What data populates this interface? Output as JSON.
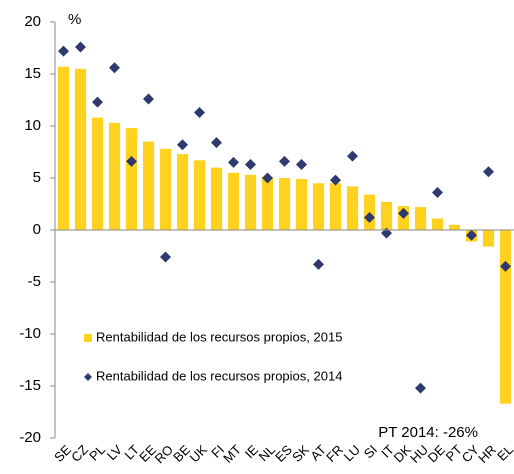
{
  "chart_data": {
    "type": "bar",
    "y_unit_label": "%",
    "annotation": "PT 2014: -26%",
    "categories": [
      "SE",
      "CZ",
      "PL",
      "LV",
      "LT",
      "EE",
      "RO",
      "BE",
      "UK",
      "FI",
      "MT",
      "IE",
      "NL",
      "ES",
      "SK",
      "AT",
      "FR",
      "LU",
      "SI",
      "IT",
      "DK",
      "HU",
      "DE",
      "PT",
      "CY",
      "HR",
      "EL"
    ],
    "series": [
      {
        "name": "Rentabilidad de los recursos propios, 2015",
        "type": "bar",
        "color": "#ffd21f",
        "values": [
          15.7,
          15.5,
          10.8,
          10.3,
          9.8,
          8.5,
          7.8,
          7.3,
          6.7,
          6.0,
          5.5,
          5.3,
          5.1,
          5.0,
          4.9,
          4.5,
          4.5,
          4.2,
          3.4,
          2.7,
          2.3,
          2.2,
          1.1,
          0.5,
          -1.1,
          -1.6,
          -16.7
        ]
      },
      {
        "name": "Rentabilidad de los recursos propios, 2014",
        "type": "scatter",
        "color": "#2e3a6e",
        "values": [
          17.2,
          17.6,
          12.3,
          15.6,
          6.6,
          12.6,
          -2.6,
          8.2,
          11.3,
          8.4,
          6.5,
          6.3,
          5.0,
          6.6,
          6.3,
          -3.3,
          4.8,
          7.1,
          1.2,
          -0.3,
          1.6,
          -15.2,
          3.6,
          null,
          -0.5,
          5.6,
          -3.5
        ]
      }
    ],
    "ylim": [
      -20,
      20
    ],
    "yticks": [
      -20,
      -15,
      -10,
      -5,
      0,
      5,
      10,
      15,
      20
    ],
    "legend": "lower left"
  }
}
